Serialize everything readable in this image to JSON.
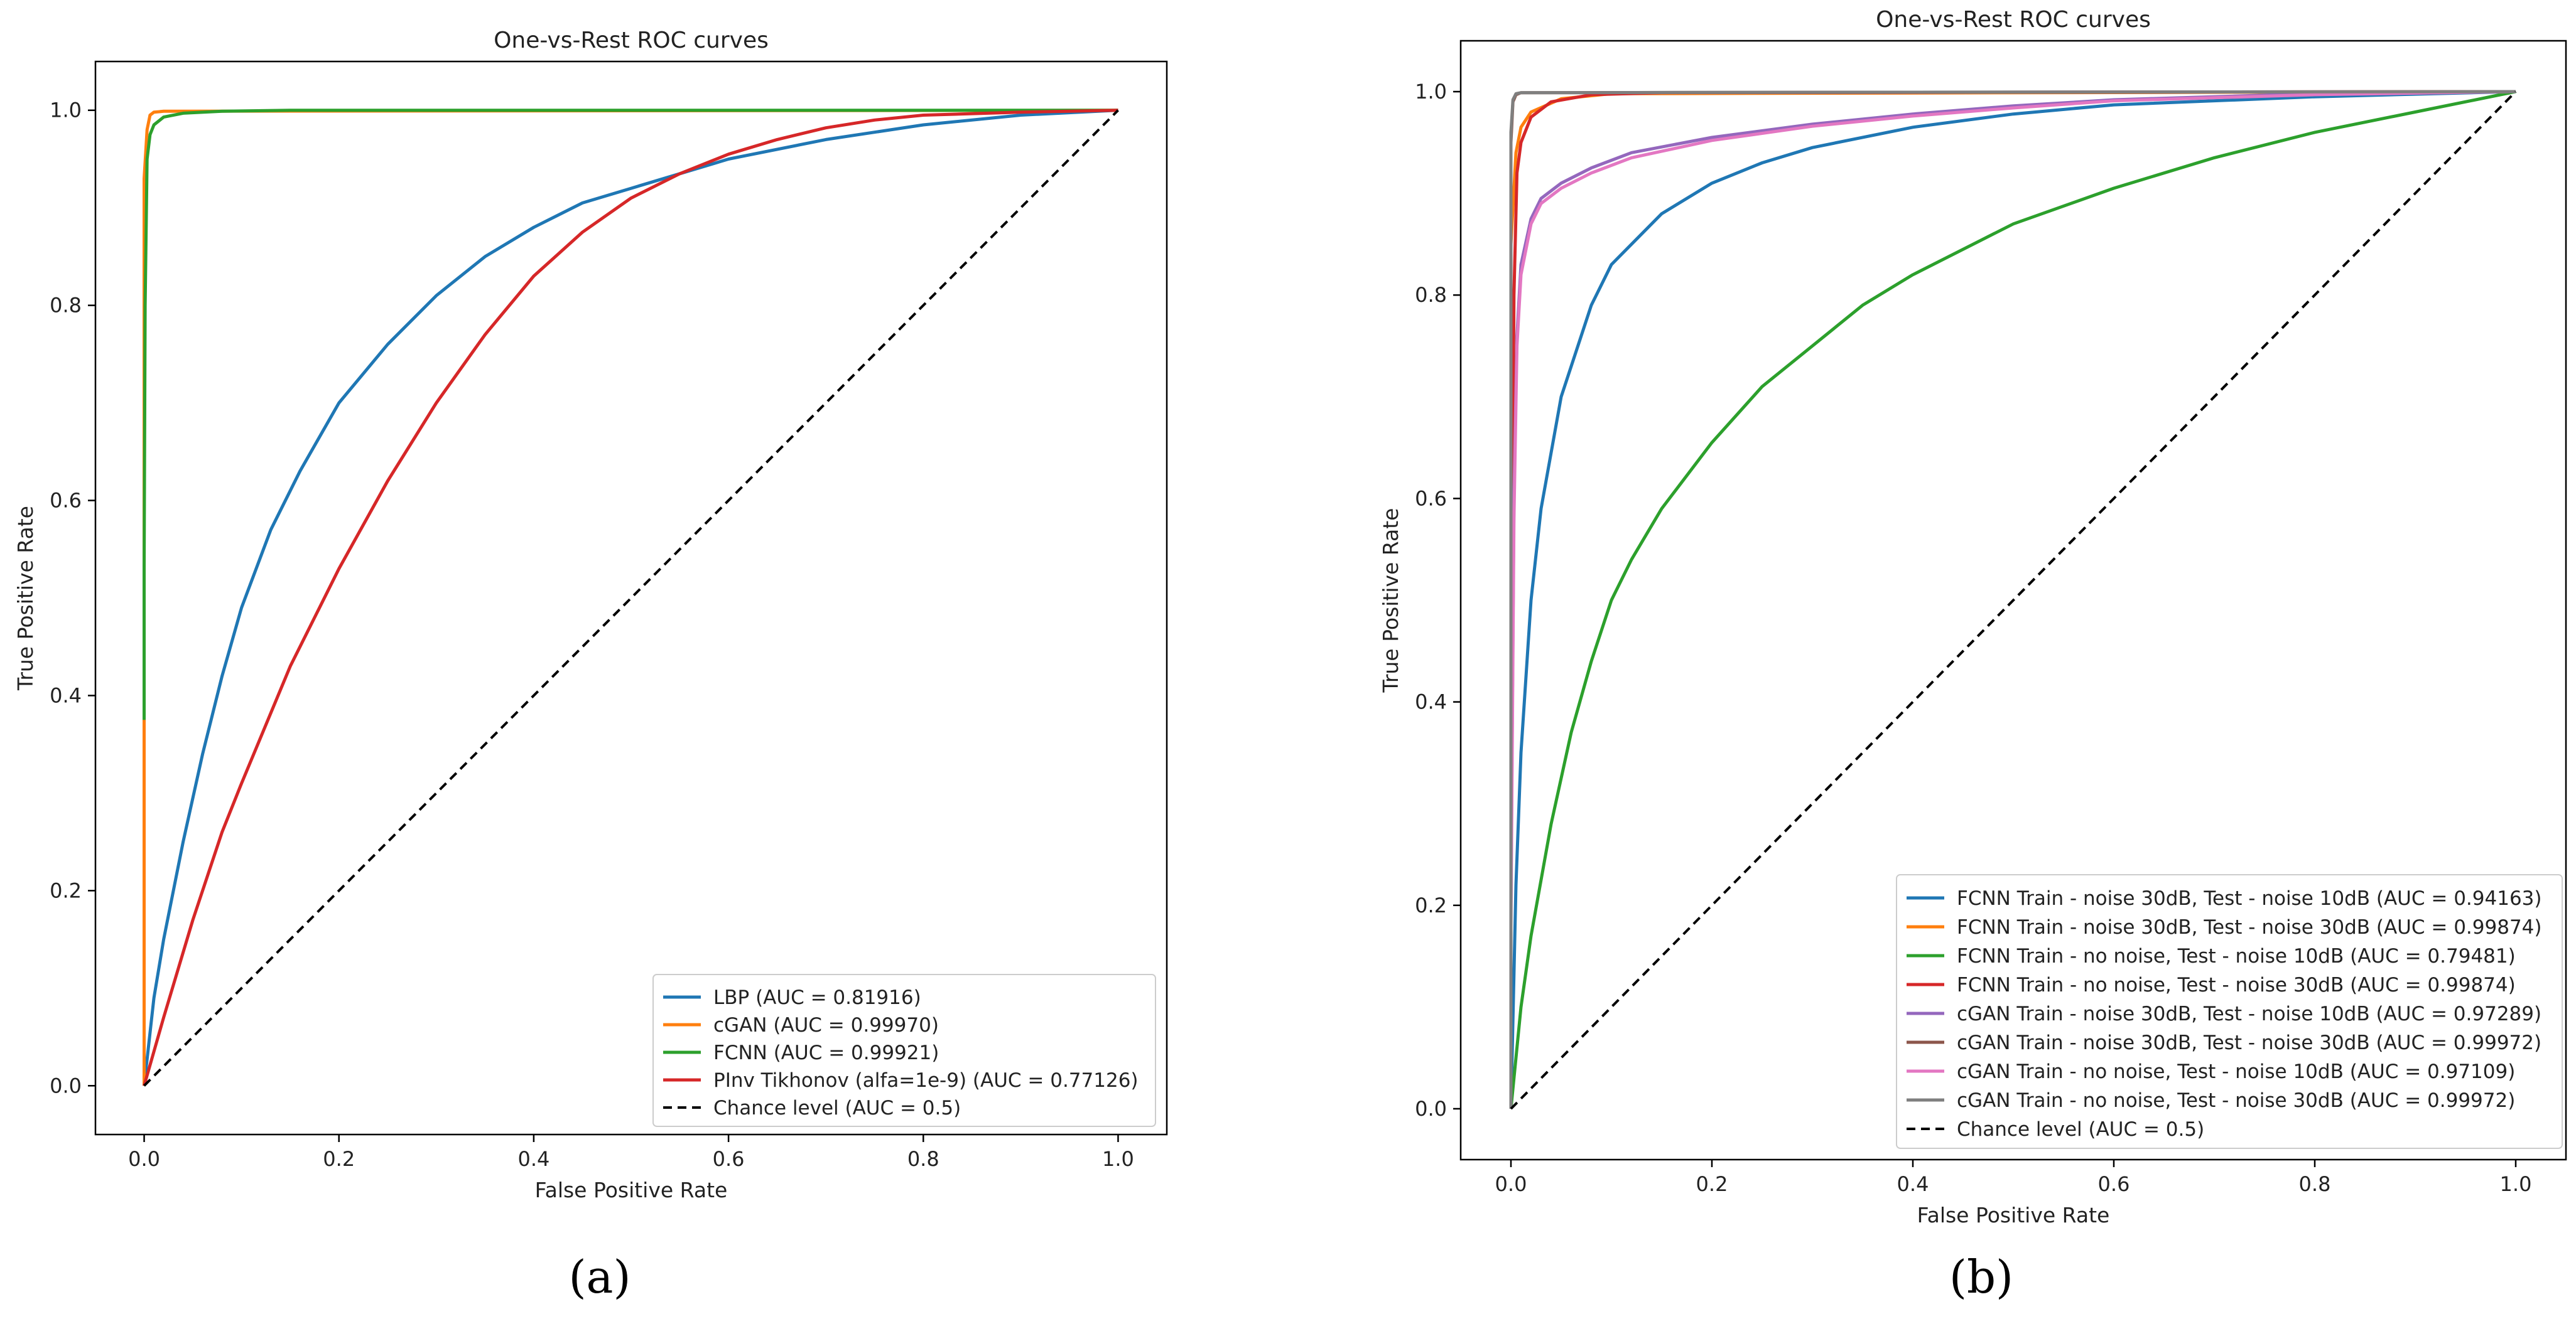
{
  "chart_data": [
    {
      "id": "a",
      "type": "line",
      "title": "One-vs-Rest ROC curves",
      "xlabel": "False Positive Rate",
      "ylabel": "True Positive Rate",
      "caption": "(a)",
      "xlim": [
        -0.05,
        1.05
      ],
      "ylim": [
        -0.05,
        1.05
      ],
      "xticks": [
        0.0,
        0.2,
        0.4,
        0.6,
        0.8,
        1.0
      ],
      "yticks": [
        0.0,
        0.2,
        0.4,
        0.6,
        0.8,
        1.0
      ],
      "tick_labels_x": [
        "0.0",
        "0.2",
        "0.4",
        "0.6",
        "0.8",
        "1.0"
      ],
      "tick_labels_y": [
        "0.0",
        "0.2",
        "0.4",
        "0.6",
        "0.8",
        "1.0"
      ],
      "legend_position": "lower-right",
      "series": [
        {
          "name": "LBP (AUC = 0.81916)",
          "color": "#1f77b4",
          "x": [
            0,
            0.01,
            0.02,
            0.04,
            0.06,
            0.08,
            0.1,
            0.13,
            0.16,
            0.2,
            0.25,
            0.3,
            0.35,
            0.4,
            0.45,
            0.5,
            0.55,
            0.6,
            0.7,
            0.8,
            0.9,
            1.0
          ],
          "y": [
            0,
            0.09,
            0.15,
            0.25,
            0.34,
            0.42,
            0.49,
            0.57,
            0.63,
            0.7,
            0.76,
            0.81,
            0.85,
            0.88,
            0.905,
            0.92,
            0.935,
            0.95,
            0.97,
            0.985,
            0.995,
            1.0
          ]
        },
        {
          "name": "cGAN (AUC = 0.99970)",
          "color": "#ff7f0e",
          "x": [
            0,
            0.0,
            0.003,
            0.006,
            0.01,
            0.02,
            1.0
          ],
          "y": [
            0,
            0.93,
            0.98,
            0.995,
            0.998,
            0.999,
            1.0
          ]
        },
        {
          "name": "FCNN (AUC = 0.99921)",
          "color": "#2ca02c",
          "x": [
            0,
            0.0,
            0.001,
            0.003,
            0.006,
            0.01,
            0.02,
            0.04,
            0.08,
            0.15,
            1.0
          ],
          "y": [
            0.375,
            0.53,
            0.8,
            0.95,
            0.975,
            0.985,
            0.993,
            0.997,
            0.999,
            1.0,
            1.0
          ]
        },
        {
          "name": "PInv Tikhonov (alfa=1e-9) (AUC = 0.77126)",
          "color": "#d62728",
          "x": [
            0,
            0.02,
            0.05,
            0.08,
            0.1,
            0.15,
            0.2,
            0.25,
            0.3,
            0.35,
            0.4,
            0.45,
            0.5,
            0.55,
            0.6,
            0.65,
            0.7,
            0.75,
            0.8,
            0.9,
            1.0
          ],
          "y": [
            0,
            0.07,
            0.17,
            0.26,
            0.31,
            0.43,
            0.53,
            0.62,
            0.7,
            0.77,
            0.83,
            0.875,
            0.91,
            0.935,
            0.955,
            0.97,
            0.982,
            0.99,
            0.995,
            0.998,
            1.0
          ]
        },
        {
          "name": "Chance level (AUC = 0.5)",
          "color": "#000000",
          "dashed": true,
          "x": [
            0,
            1
          ],
          "y": [
            0,
            1
          ]
        }
      ]
    },
    {
      "id": "b",
      "type": "line",
      "title": "One-vs-Rest ROC curves",
      "xlabel": "False Positive Rate",
      "ylabel": "True Positive Rate",
      "caption": "(b)",
      "xlim": [
        -0.05,
        1.05
      ],
      "ylim": [
        -0.05,
        1.05
      ],
      "xticks": [
        0.0,
        0.2,
        0.4,
        0.6,
        0.8,
        1.0
      ],
      "yticks": [
        0.0,
        0.2,
        0.4,
        0.6,
        0.8,
        1.0
      ],
      "tick_labels_x": [
        "0.0",
        "0.2",
        "0.4",
        "0.6",
        "0.8",
        "1.0"
      ],
      "tick_labels_y": [
        "0.0",
        "0.2",
        "0.4",
        "0.6",
        "0.8",
        "1.0"
      ],
      "legend_position": "lower-right",
      "series": [
        {
          "name": "FCNN Train - noise 30dB, Test - noise 10dB (AUC = 0.94163)",
          "color": "#1f77b4",
          "x": [
            0,
            0.005,
            0.01,
            0.02,
            0.03,
            0.05,
            0.08,
            0.1,
            0.15,
            0.2,
            0.25,
            0.3,
            0.4,
            0.5,
            0.6,
            0.8,
            1.0
          ],
          "y": [
            0,
            0.22,
            0.35,
            0.5,
            0.59,
            0.7,
            0.79,
            0.83,
            0.88,
            0.91,
            0.93,
            0.945,
            0.965,
            0.978,
            0.987,
            0.995,
            1.0
          ]
        },
        {
          "name": "FCNN Train - noise 30dB, Test - noise 30dB (AUC = 0.99874)",
          "color": "#ff7f0e",
          "x": [
            0,
            0.0,
            0.005,
            0.01,
            0.02,
            0.05,
            0.1,
            1.0
          ],
          "y": [
            0,
            0.85,
            0.94,
            0.965,
            0.98,
            0.993,
            0.998,
            1.0
          ]
        },
        {
          "name": "FCNN Train - no noise, Test - noise 10dB (AUC = 0.79481)",
          "color": "#2ca02c",
          "x": [
            0,
            0.01,
            0.02,
            0.04,
            0.06,
            0.08,
            0.1,
            0.12,
            0.15,
            0.2,
            0.25,
            0.3,
            0.35,
            0.4,
            0.5,
            0.6,
            0.7,
            0.8,
            0.9,
            1.0
          ],
          "y": [
            0,
            0.1,
            0.17,
            0.28,
            0.37,
            0.44,
            0.5,
            0.54,
            0.59,
            0.655,
            0.71,
            0.75,
            0.79,
            0.82,
            0.87,
            0.905,
            0.935,
            0.96,
            0.98,
            1.0
          ]
        },
        {
          "name": "FCNN Train - no noise, Test - noise 30dB (AUC = 0.99874)",
          "color": "#d62728",
          "x": [
            0,
            0.0,
            0.003,
            0.006,
            0.01,
            0.02,
            0.04,
            0.08,
            0.15,
            1.0
          ],
          "y": [
            0,
            0.35,
            0.8,
            0.92,
            0.95,
            0.975,
            0.99,
            0.997,
            0.999,
            1.0
          ]
        },
        {
          "name": "cGAN Train - noise 30dB, Test - noise 10dB (AUC = 0.97289)",
          "color": "#9467bd",
          "x": [
            0,
            0.0,
            0.003,
            0.006,
            0.01,
            0.02,
            0.03,
            0.05,
            0.08,
            0.12,
            0.2,
            0.3,
            0.4,
            0.5,
            0.6,
            0.8,
            1.0
          ],
          "y": [
            0,
            0.2,
            0.6,
            0.76,
            0.83,
            0.875,
            0.895,
            0.91,
            0.925,
            0.94,
            0.955,
            0.968,
            0.978,
            0.986,
            0.992,
            0.998,
            1.0
          ]
        },
        {
          "name": "cGAN Train - noise 30dB, Test - noise 30dB (AUC = 0.99972)",
          "color": "#8c564b",
          "x": [
            0,
            0.0,
            0.002,
            0.005,
            0.01,
            1.0
          ],
          "y": [
            0,
            0.95,
            0.99,
            0.997,
            0.999,
            1.0
          ]
        },
        {
          "name": "cGAN Train - no noise, Test - noise 10dB (AUC = 0.97109)",
          "color": "#e377c2",
          "x": [
            0,
            0.0,
            0.003,
            0.006,
            0.01,
            0.02,
            0.03,
            0.05,
            0.08,
            0.12,
            0.2,
            0.3,
            0.4,
            0.5,
            0.6,
            0.8,
            1.0
          ],
          "y": [
            0,
            0.18,
            0.58,
            0.75,
            0.82,
            0.87,
            0.89,
            0.905,
            0.92,
            0.935,
            0.952,
            0.966,
            0.976,
            0.984,
            0.991,
            0.997,
            1.0
          ]
        },
        {
          "name": "cGAN Train - no noise, Test - noise 30dB (AUC = 0.99972)",
          "color": "#7f7f7f",
          "x": [
            0,
            0.0,
            0.002,
            0.005,
            0.01,
            1.0
          ],
          "y": [
            0,
            0.96,
            0.992,
            0.998,
            0.999,
            1.0
          ]
        },
        {
          "name": "Chance level (AUC = 0.5)",
          "color": "#000000",
          "dashed": true,
          "x": [
            0,
            1
          ],
          "y": [
            0,
            1
          ]
        }
      ]
    }
  ]
}
